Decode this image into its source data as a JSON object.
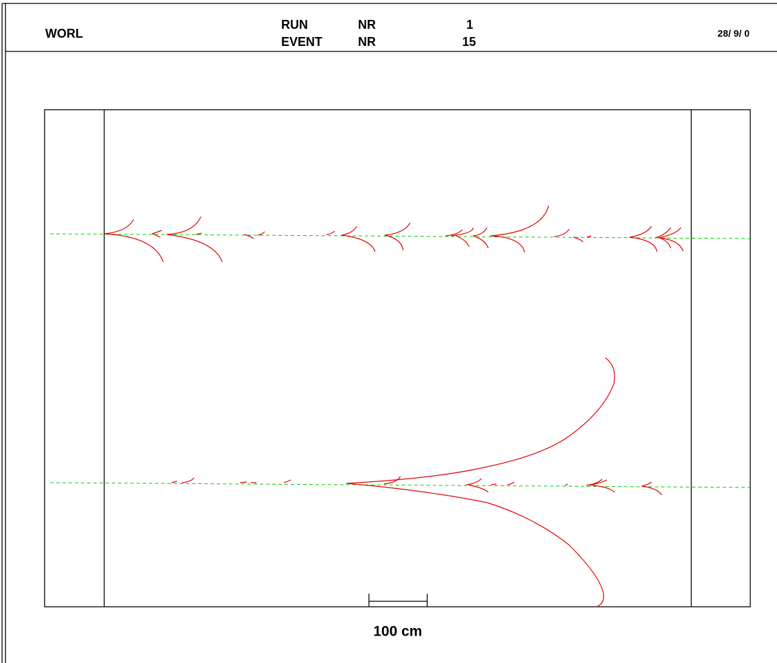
{
  "header": {
    "title": "WORL",
    "run_label": "RUN",
    "run_nr_label": "NR",
    "run_number": 1,
    "event_label": "EVENT",
    "event_nr_label": "NR",
    "event_number": 15,
    "date": "28/ 9/ 0"
  },
  "scale": {
    "label": "100 cm"
  }
}
